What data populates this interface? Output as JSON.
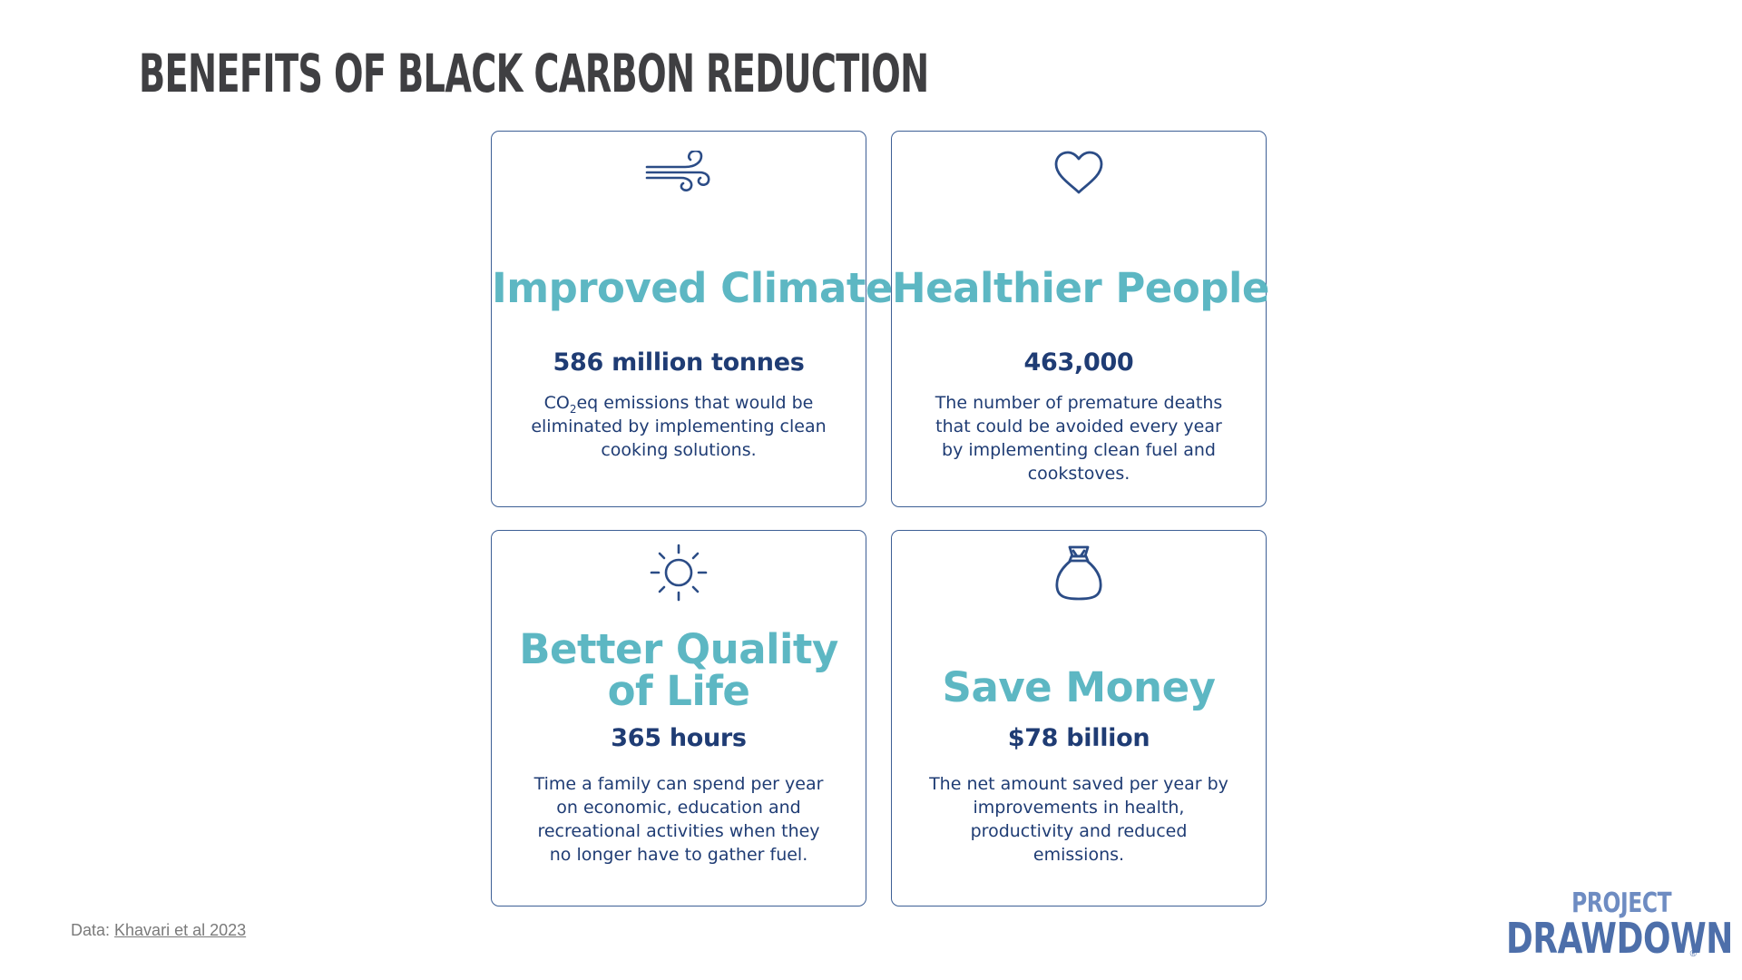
{
  "title": "BENEFITS OF BLACK CARBON REDUCTION",
  "colors": {
    "heading": "#5db7c3",
    "stat": "#1f3c74",
    "border": "#3d5f95",
    "title": "#3f3f42",
    "logo_top": "#6e8cc2",
    "logo_bottom": "#4d6faa"
  },
  "cards": [
    {
      "icon": "wind-icon",
      "heading": "Improved Climate",
      "stat": "586 million tonnes",
      "description_pre": "CO",
      "description_sub": "2",
      "description_post": "eq emissions that would be eliminated by implementing clean cooking solutions."
    },
    {
      "icon": "heart-icon",
      "heading": "Healthier People",
      "stat": "463,000",
      "description": "The number of premature deaths that could be avoided every year by implementing clean fuel and cookstoves."
    },
    {
      "icon": "sun-icon",
      "heading_line1": "Better Quality",
      "heading_line2": "of Life",
      "stat": "365 hours",
      "description": "Time a family can spend per year on economic, education and recreational activities when they no longer have to gather fuel."
    },
    {
      "icon": "money-bag-icon",
      "heading": "Save Money",
      "stat": "$78 billion",
      "description": "The net amount saved per year by improvements in health, productivity and reduced emissions."
    }
  ],
  "footer": {
    "credit_label": "Data: ",
    "credit_link": "Khavari et al 2023"
  },
  "logo": {
    "line1": "PROJECT",
    "line2": "DRAWDOWN",
    "mark": "®"
  }
}
